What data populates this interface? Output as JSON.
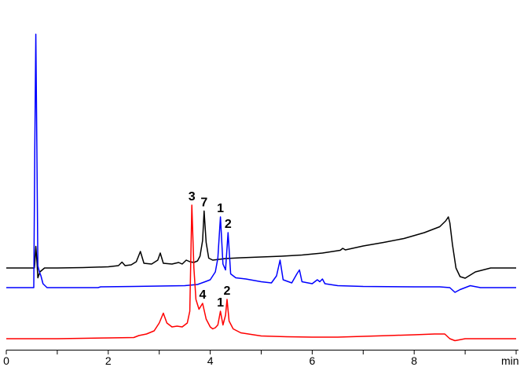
{
  "chart_data": {
    "type": "line",
    "title": "",
    "xlabel": "min",
    "ylabel": "",
    "xlim": [
      0,
      10
    ],
    "grid": false,
    "legend": "none",
    "x_ticks": [
      0,
      2,
      4,
      6,
      8
    ],
    "series": [
      {
        "color": "#000000",
        "points": [
          [
            0.0,
            0.0
          ],
          [
            0.55,
            0.0
          ],
          [
            0.56,
            0.12
          ],
          [
            0.58,
            0.55
          ],
          [
            0.6,
            0.2
          ],
          [
            0.62,
            -0.25
          ],
          [
            0.66,
            -0.1
          ],
          [
            0.75,
            0.0
          ],
          [
            1.0,
            0.0
          ],
          [
            1.5,
            0.01
          ],
          [
            2.0,
            0.03
          ],
          [
            2.2,
            0.06
          ],
          [
            2.27,
            0.15
          ],
          [
            2.33,
            0.06
          ],
          [
            2.45,
            0.08
          ],
          [
            2.55,
            0.16
          ],
          [
            2.63,
            0.42
          ],
          [
            2.7,
            0.12
          ],
          [
            2.85,
            0.1
          ],
          [
            2.97,
            0.2
          ],
          [
            3.02,
            0.38
          ],
          [
            3.08,
            0.12
          ],
          [
            3.25,
            0.1
          ],
          [
            3.38,
            0.14
          ],
          [
            3.45,
            0.1
          ],
          [
            3.53,
            0.2
          ],
          [
            3.6,
            0.16
          ],
          [
            3.68,
            0.14
          ],
          [
            3.75,
            0.18
          ],
          [
            3.8,
            0.3
          ],
          [
            3.85,
            0.7
          ],
          [
            3.88,
            1.45
          ],
          [
            3.92,
            0.65
          ],
          [
            3.97,
            0.25
          ],
          [
            4.05,
            0.2
          ],
          [
            4.3,
            0.24
          ],
          [
            4.6,
            0.26
          ],
          [
            5.0,
            0.28
          ],
          [
            5.4,
            0.3
          ],
          [
            5.8,
            0.33
          ],
          [
            6.2,
            0.38
          ],
          [
            6.55,
            0.45
          ],
          [
            6.6,
            0.5
          ],
          [
            6.65,
            0.46
          ],
          [
            7.0,
            0.56
          ],
          [
            7.4,
            0.65
          ],
          [
            7.8,
            0.75
          ],
          [
            8.2,
            0.9
          ],
          [
            8.5,
            1.05
          ],
          [
            8.62,
            1.2
          ],
          [
            8.67,
            1.3
          ],
          [
            8.7,
            1.15
          ],
          [
            8.75,
            0.6
          ],
          [
            8.82,
            0.0
          ],
          [
            8.9,
            -0.22
          ],
          [
            9.0,
            -0.26
          ],
          [
            9.2,
            -0.1
          ],
          [
            9.5,
            0.0
          ],
          [
            10.0,
            0.0
          ]
        ]
      },
      {
        "color": "#0000ff",
        "points": [
          [
            0.0,
            0.0
          ],
          [
            0.54,
            0.0
          ],
          [
            0.56,
            3.6
          ],
          [
            0.58,
            6.45
          ],
          [
            0.6,
            3.6
          ],
          [
            0.62,
            0.55
          ],
          [
            0.65,
            0.4
          ],
          [
            0.68,
            0.3
          ],
          [
            0.72,
            0.1
          ],
          [
            0.8,
            0.0
          ],
          [
            1.8,
            0.0
          ],
          [
            1.85,
            0.02
          ],
          [
            2.5,
            0.03
          ],
          [
            3.5,
            0.05
          ],
          [
            3.75,
            0.08
          ],
          [
            3.9,
            0.15
          ],
          [
            4.0,
            0.2
          ],
          [
            4.1,
            0.4
          ],
          [
            4.15,
            0.75
          ],
          [
            4.2,
            1.8
          ],
          [
            4.25,
            0.6
          ],
          [
            4.3,
            0.45
          ],
          [
            4.35,
            1.4
          ],
          [
            4.4,
            0.35
          ],
          [
            4.5,
            0.25
          ],
          [
            4.7,
            0.22
          ],
          [
            5.0,
            0.15
          ],
          [
            5.2,
            0.12
          ],
          [
            5.3,
            0.3
          ],
          [
            5.37,
            0.7
          ],
          [
            5.43,
            0.2
          ],
          [
            5.6,
            0.12
          ],
          [
            5.7,
            0.35
          ],
          [
            5.75,
            0.45
          ],
          [
            5.8,
            0.15
          ],
          [
            6.0,
            0.1
          ],
          [
            6.1,
            0.2
          ],
          [
            6.15,
            0.15
          ],
          [
            6.2,
            0.22
          ],
          [
            6.25,
            0.1
          ],
          [
            6.5,
            0.05
          ],
          [
            7.0,
            0.03
          ],
          [
            8.0,
            0.02
          ],
          [
            8.5,
            0.02
          ],
          [
            8.7,
            0.0
          ],
          [
            8.8,
            -0.12
          ],
          [
            8.9,
            -0.05
          ],
          [
            9.0,
            0.0
          ],
          [
            9.1,
            0.05
          ],
          [
            9.3,
            0.0
          ],
          [
            10.0,
            0.0
          ]
        ]
      },
      {
        "color": "#ff0000",
        "points": [
          [
            0.0,
            0.0
          ],
          [
            0.5,
            0.0
          ],
          [
            1.0,
            0.0
          ],
          [
            1.5,
            0.01
          ],
          [
            2.0,
            0.02
          ],
          [
            2.5,
            0.03
          ],
          [
            2.6,
            0.08
          ],
          [
            2.75,
            0.12
          ],
          [
            2.9,
            0.2
          ],
          [
            3.0,
            0.4
          ],
          [
            3.08,
            0.65
          ],
          [
            3.15,
            0.4
          ],
          [
            3.25,
            0.3
          ],
          [
            3.35,
            0.32
          ],
          [
            3.45,
            0.3
          ],
          [
            3.55,
            0.4
          ],
          [
            3.6,
            0.7
          ],
          [
            3.64,
            3.4
          ],
          [
            3.68,
            1.8
          ],
          [
            3.72,
            1.0
          ],
          [
            3.78,
            0.75
          ],
          [
            3.85,
            0.9
          ],
          [
            3.92,
            0.5
          ],
          [
            4.0,
            0.3
          ],
          [
            4.05,
            0.25
          ],
          [
            4.1,
            0.28
          ],
          [
            4.15,
            0.35
          ],
          [
            4.2,
            0.7
          ],
          [
            4.25,
            0.35
          ],
          [
            4.3,
            0.6
          ],
          [
            4.33,
            1.0
          ],
          [
            4.37,
            0.45
          ],
          [
            4.45,
            0.25
          ],
          [
            4.6,
            0.15
          ],
          [
            5.0,
            0.07
          ],
          [
            5.5,
            0.05
          ],
          [
            6.0,
            0.04
          ],
          [
            6.5,
            0.04
          ],
          [
            7.0,
            0.06
          ],
          [
            7.5,
            0.08
          ],
          [
            8.0,
            0.1
          ],
          [
            8.4,
            0.12
          ],
          [
            8.6,
            0.12
          ],
          [
            8.7,
            0.0
          ],
          [
            8.8,
            -0.05
          ],
          [
            9.0,
            0.0
          ],
          [
            10.0,
            0.0
          ]
        ]
      }
    ],
    "annotations": [
      {
        "text": "7",
        "x": 3.88,
        "series": 0
      },
      {
        "text": "1",
        "x": 4.2,
        "series": 1
      },
      {
        "text": "2",
        "x": 4.35,
        "series": 1
      },
      {
        "text": "3",
        "x": 3.64,
        "series": 2
      },
      {
        "text": "4",
        "x": 3.85,
        "series": 2
      },
      {
        "text": "1",
        "x": 4.2,
        "series": 2
      },
      {
        "text": "2",
        "x": 4.33,
        "series": 2
      }
    ]
  }
}
